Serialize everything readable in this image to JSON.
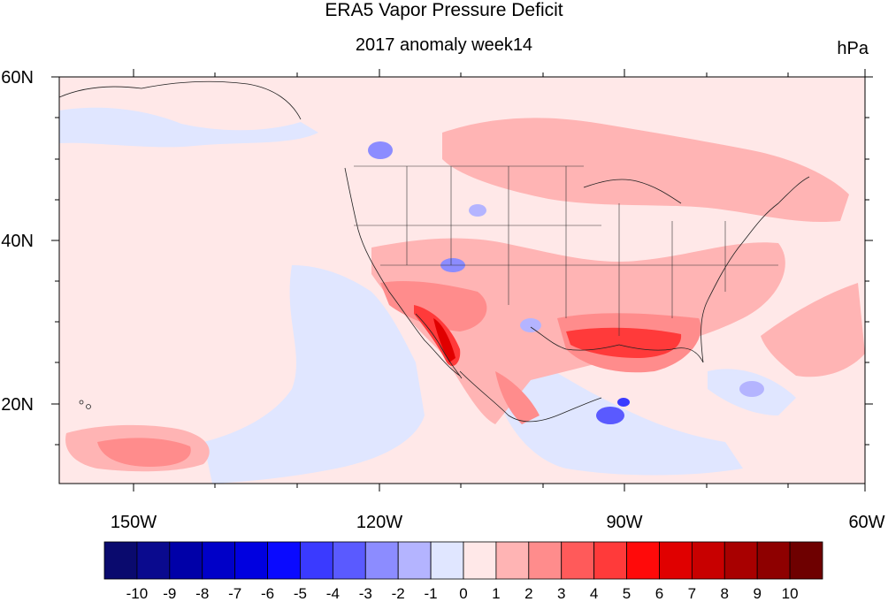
{
  "title": "ERA5 Vapor Pressure Deficit",
  "subtitle": "2017 anomaly week14",
  "units": "hPa",
  "colors": {
    "levels": [
      "#0a0a6e",
      "#0a0a8e",
      "#0000a8",
      "#0000c8",
      "#0000e0",
      "#0a0aff",
      "#3a3aff",
      "#5a5aff",
      "#8c8cff",
      "#b4b4ff",
      "#e0e6ff",
      "#ffe8e8",
      "#ffb4b4",
      "#ff8c8c",
      "#ff5a5a",
      "#ff3a3a",
      "#ff0a0a",
      "#e00000",
      "#c80000",
      "#a80000",
      "#8e0000",
      "#6e0000"
    ]
  },
  "map": {
    "lat_labels": [
      "60N",
      "40N",
      "20N"
    ],
    "lon_labels": [
      "150W",
      "120W",
      "90W",
      "60W"
    ]
  },
  "colorbar": {
    "labels": [
      "-10",
      "-9",
      "-8",
      "-7",
      "-6",
      "-5",
      "-4",
      "-3",
      "-2",
      "-1",
      "0",
      "1",
      "2",
      "3",
      "4",
      "5",
      "6",
      "7",
      "8",
      "9",
      "10"
    ]
  }
}
